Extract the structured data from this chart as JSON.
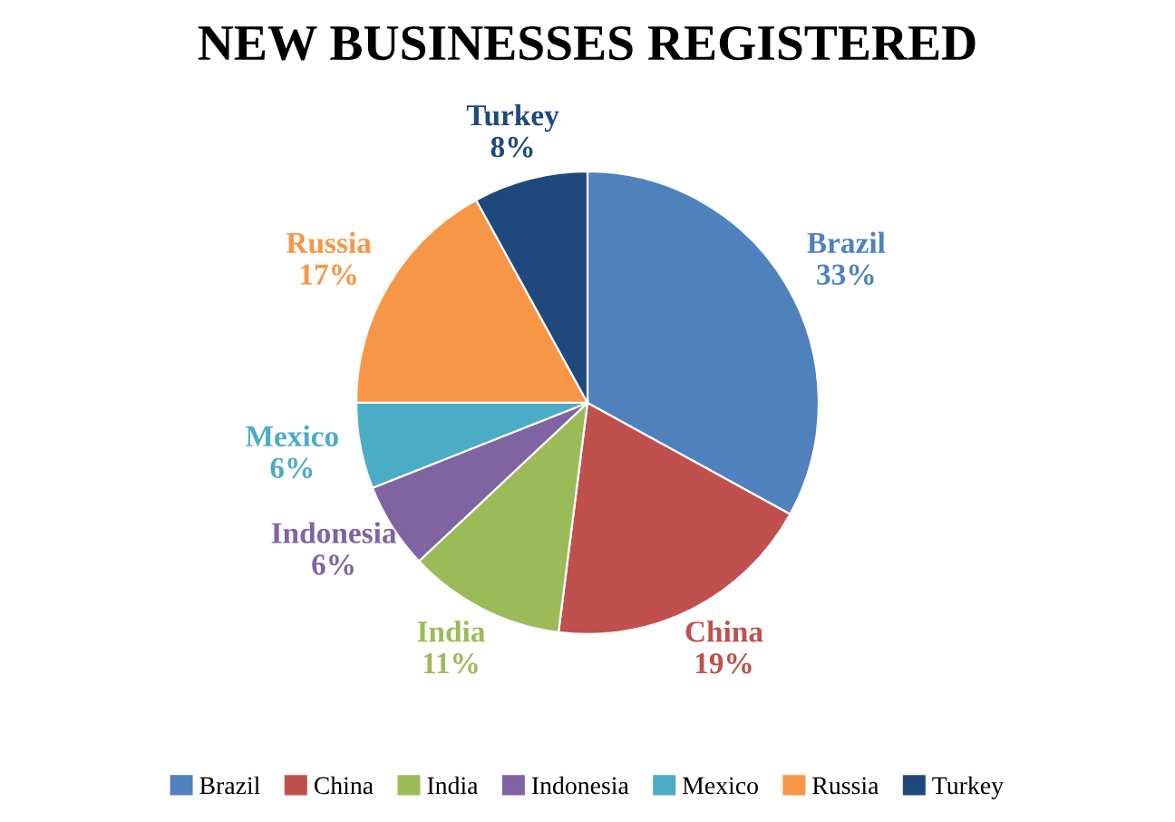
{
  "chart_data": {
    "type": "pie",
    "title": "NEW BUSINESSES REGISTERED",
    "categories": [
      "Brazil",
      "China",
      "India",
      "Indonesia",
      "Mexico",
      "Russia",
      "Turkey"
    ],
    "values": [
      33,
      19,
      11,
      6,
      6,
      17,
      8
    ],
    "colors": [
      "#4f81bd",
      "#c0504d",
      "#9bbb59",
      "#8064a2",
      "#4bacc6",
      "#f79646",
      "#1f497d"
    ],
    "value_labels": [
      "33%",
      "19%",
      "11%",
      "6%",
      "6%",
      "17%",
      "8%"
    ],
    "legend": "bottom"
  }
}
